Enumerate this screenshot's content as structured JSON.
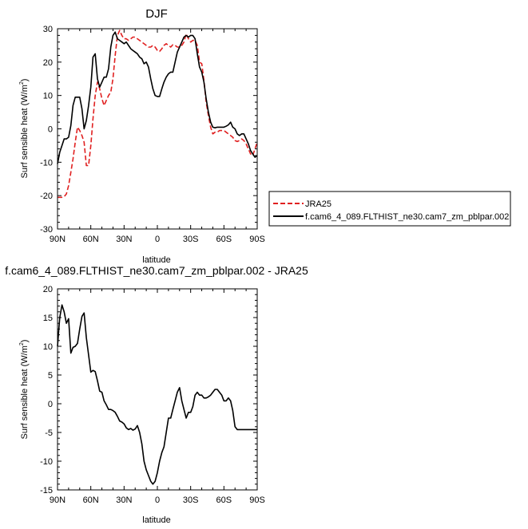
{
  "chart_data": [
    {
      "type": "line",
      "title": "DJF",
      "xlabel": "latitude",
      "ylabel": "Surf sensible heat (W/m",
      "ylabel_sup": "2",
      "ylabel_end": ")",
      "xlim": [
        90,
        -90
      ],
      "ylim": [
        -30,
        30
      ],
      "xticks": [
        90,
        60,
        30,
        0,
        -30,
        -60,
        -90
      ],
      "xtick_labels": [
        "90N",
        "60N",
        "30N",
        "0",
        "30S",
        "60S",
        "90S"
      ],
      "yticks": [
        -30,
        -20,
        -10,
        0,
        10,
        20,
        30
      ],
      "ytick_labels": [
        "-30",
        "-20",
        "-10",
        "0",
        "10",
        "20",
        "30"
      ],
      "legend_position": "outside-right",
      "series": [
        {
          "name": "JRA25",
          "color": "#e02020",
          "dash": "dashed",
          "x": [
            90,
            88,
            86,
            84,
            82,
            80,
            78,
            76,
            74,
            72,
            70,
            68,
            66,
            64,
            62,
            60,
            58,
            56,
            54,
            52,
            50,
            48,
            46,
            44,
            42,
            40,
            38,
            36,
            34,
            32,
            30,
            28,
            26,
            24,
            22,
            20,
            18,
            16,
            14,
            12,
            10,
            8,
            6,
            4,
            2,
            0,
            -2,
            -4,
            -6,
            -8,
            -10,
            -12,
            -14,
            -16,
            -18,
            -20,
            -22,
            -24,
            -26,
            -28,
            -30,
            -32,
            -34,
            -36,
            -38,
            -40,
            -42,
            -44,
            -46,
            -48,
            -50,
            -52,
            -54,
            -56,
            -58,
            -60,
            -62,
            -64,
            -66,
            -68,
            -70,
            -72,
            -74,
            -76,
            -78,
            -80,
            -82,
            -84,
            -86,
            -88,
            -90
          ],
          "y": [
            -20.5,
            -20.5,
            -20.5,
            -20.3,
            -19.5,
            -17,
            -13,
            -9,
            -4,
            0.5,
            -0.5,
            -2,
            -4,
            -11,
            -11,
            -5,
            3,
            10,
            14,
            12,
            9,
            7,
            8.5,
            10,
            11,
            15,
            22,
            28,
            29.5,
            28,
            27,
            27,
            26.5,
            27,
            27.5,
            27.5,
            27,
            26.5,
            26,
            25.5,
            25,
            24.5,
            24.5,
            25,
            24.5,
            23.5,
            23.2,
            24,
            25,
            25.5,
            25,
            24.5,
            25.2,
            25,
            24.5,
            24.5,
            25,
            26,
            28.5,
            27,
            26,
            26.5,
            26.5,
            25,
            20,
            19.5,
            14.5,
            8,
            4,
            0.5,
            -1.5,
            -1,
            -1,
            -0.5,
            -0.5,
            -0.5,
            -1,
            -1.5,
            -2,
            -2.5,
            -3.5,
            -3.8,
            -3.5,
            -3,
            -3.5,
            -4.5,
            -6,
            -7.5,
            -8,
            -6,
            -4
          ]
        },
        {
          "name": "f.cam6_4_089.FLTHIST_ne30.cam7_zm_pblpar.002",
          "color": "#000000",
          "dash": "solid",
          "x": [
            90,
            88,
            86,
            84,
            82,
            80,
            78,
            76,
            74,
            72,
            70,
            68,
            66,
            64,
            62,
            60,
            58,
            56,
            54,
            52,
            50,
            48,
            46,
            44,
            42,
            40,
            38,
            36,
            34,
            32,
            30,
            28,
            26,
            24,
            22,
            20,
            18,
            16,
            14,
            12,
            10,
            8,
            6,
            4,
            2,
            0,
            -2,
            -4,
            -6,
            -8,
            -10,
            -12,
            -14,
            -16,
            -18,
            -20,
            -22,
            -24,
            -26,
            -28,
            -30,
            -32,
            -34,
            -36,
            -38,
            -40,
            -42,
            -44,
            -46,
            -48,
            -50,
            -52,
            -54,
            -56,
            -58,
            -60,
            -62,
            -64,
            -66,
            -68,
            -70,
            -72,
            -74,
            -76,
            -78,
            -80,
            -82,
            -84,
            -86,
            -88,
            -90
          ],
          "y": [
            -10.5,
            -7,
            -5,
            -3,
            -3,
            -2.5,
            1,
            7,
            9.5,
            9.5,
            9.5,
            6,
            0,
            2.5,
            7,
            12.5,
            21.5,
            22.5,
            15,
            12.5,
            14,
            15.5,
            15.5,
            18,
            24.5,
            28,
            29,
            27,
            26.5,
            26,
            25.5,
            26,
            25,
            24,
            23.5,
            23,
            22.5,
            21.5,
            21,
            19.5,
            20,
            18.5,
            15,
            12,
            10,
            9.7,
            9.7,
            12,
            14,
            15.5,
            16.5,
            17,
            17,
            20,
            23,
            24.5,
            26,
            27.5,
            28,
            27.5,
            28,
            28,
            27,
            22.5,
            18.5,
            17,
            14,
            9,
            5,
            2,
            0.5,
            0.3,
            0.5,
            0.5,
            0.5,
            0.5,
            0.8,
            1.2,
            2,
            0.5,
            0,
            -1.5,
            -2,
            -1.5,
            -1.5,
            -3,
            -4.5,
            -6.5,
            -7.5,
            -8.5,
            -8
          ]
        }
      ]
    },
    {
      "type": "line",
      "title": "f.cam6_4_089.FLTHIST_ne30.cam7_zm_pblpar.002 - JRA25",
      "xlabel": "latitude",
      "ylabel": "Surf sensible heat (W/m",
      "ylabel_sup": "2",
      "ylabel_end": ")",
      "xlim": [
        90,
        -90
      ],
      "ylim": [
        -15,
        20
      ],
      "xticks": [
        90,
        60,
        30,
        0,
        -30,
        -60,
        -90
      ],
      "xtick_labels": [
        "90N",
        "60N",
        "30N",
        "0",
        "30S",
        "60S",
        "90S"
      ],
      "yticks": [
        -15,
        -10,
        -5,
        0,
        5,
        10,
        15,
        20
      ],
      "ytick_labels": [
        "-15",
        "-10",
        "-5",
        "0",
        "5",
        "10",
        "15",
        "20"
      ],
      "series": [
        {
          "color": "#000000",
          "dash": "solid",
          "x": [
            90,
            88,
            86,
            84,
            82,
            80,
            78,
            76,
            74,
            72,
            70,
            68,
            66,
            64,
            62,
            60,
            58,
            56,
            54,
            52,
            50,
            48,
            46,
            44,
            42,
            40,
            38,
            36,
            34,
            32,
            30,
            28,
            26,
            24,
            22,
            20,
            18,
            16,
            14,
            12,
            10,
            8,
            6,
            4,
            2,
            0,
            -2,
            -4,
            -6,
            -8,
            -10,
            -12,
            -14,
            -16,
            -18,
            -20,
            -22,
            -24,
            -26,
            -28,
            -30,
            -32,
            -34,
            -36,
            -38,
            -40,
            -42,
            -44,
            -46,
            -48,
            -50,
            -52,
            -54,
            -56,
            -58,
            -60,
            -62,
            -64,
            -66,
            -68,
            -70,
            -72,
            -74,
            -76,
            -78,
            -80,
            -82,
            -84,
            -86,
            -88,
            -90
          ],
          "y": [
            10,
            15,
            17.2,
            16,
            14,
            14.8,
            8.8,
            9.8,
            10,
            10.5,
            13,
            15.2,
            15.8,
            11.5,
            8.5,
            5.5,
            5.8,
            5.6,
            4,
            2.2,
            2,
            0.5,
            -0.2,
            -1,
            -1,
            -1.2,
            -1.5,
            -2.2,
            -3,
            -3.2,
            -3.5,
            -4.2,
            -4.5,
            -4.3,
            -4.6,
            -4.4,
            -3.8,
            -5,
            -7,
            -10,
            -11.5,
            -12.5,
            -13.5,
            -14,
            -13.5,
            -12,
            -10,
            -8.5,
            -7.5,
            -5,
            -2.5,
            -2.5,
            -1,
            0.5,
            2,
            2.8,
            0.5,
            -1,
            -2.5,
            -1.5,
            -1.5,
            -0.5,
            1.5,
            2,
            1.5,
            1.5,
            1,
            1,
            1.2,
            1.5,
            2,
            2.5,
            2.5,
            2,
            1.5,
            0.5,
            0.5,
            1,
            0.5,
            -1.2,
            -4,
            -4.5,
            -4.5,
            -4.5,
            -4.5,
            -4.5,
            -4.5,
            -4.5,
            -4.5,
            -4.5,
            -4.5
          ]
        }
      ]
    }
  ]
}
